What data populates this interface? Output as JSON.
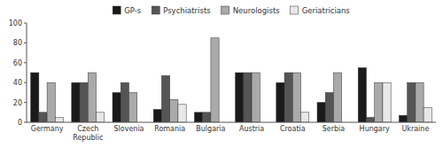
{
  "chart_data": {
    "type": "bar",
    "categories": [
      "Germany",
      "Czech\nRepublic",
      "Slovenia",
      "Romania",
      "Bulgaria",
      "Austria",
      "Croatia",
      "Serbia",
      "Hungary",
      "Ukraine"
    ],
    "series": [
      {
        "name": "GP-s",
        "color": "#1a1a1a",
        "values": [
          50,
          40,
          30,
          13,
          10,
          50,
          40,
          20,
          55,
          7
        ]
      },
      {
        "name": "Psychiatrists",
        "color": "#555555",
        "values": [
          10,
          40,
          40,
          47,
          10,
          50,
          50,
          30,
          5,
          40
        ]
      },
      {
        "name": "Neurologists",
        "color": "#aaaaaa",
        "values": [
          40,
          50,
          30,
          23,
          85,
          50,
          50,
          50,
          40,
          40
        ]
      },
      {
        "name": "Geriatricians",
        "color": "#e8e8e8",
        "values": [
          5,
          10,
          0,
          18,
          0,
          0,
          10,
          0,
          40,
          15
        ]
      }
    ],
    "ylim": [
      0,
      100
    ],
    "yticks": [
      0,
      20,
      40,
      60,
      80,
      100
    ],
    "grid": false,
    "legend": "top"
  }
}
